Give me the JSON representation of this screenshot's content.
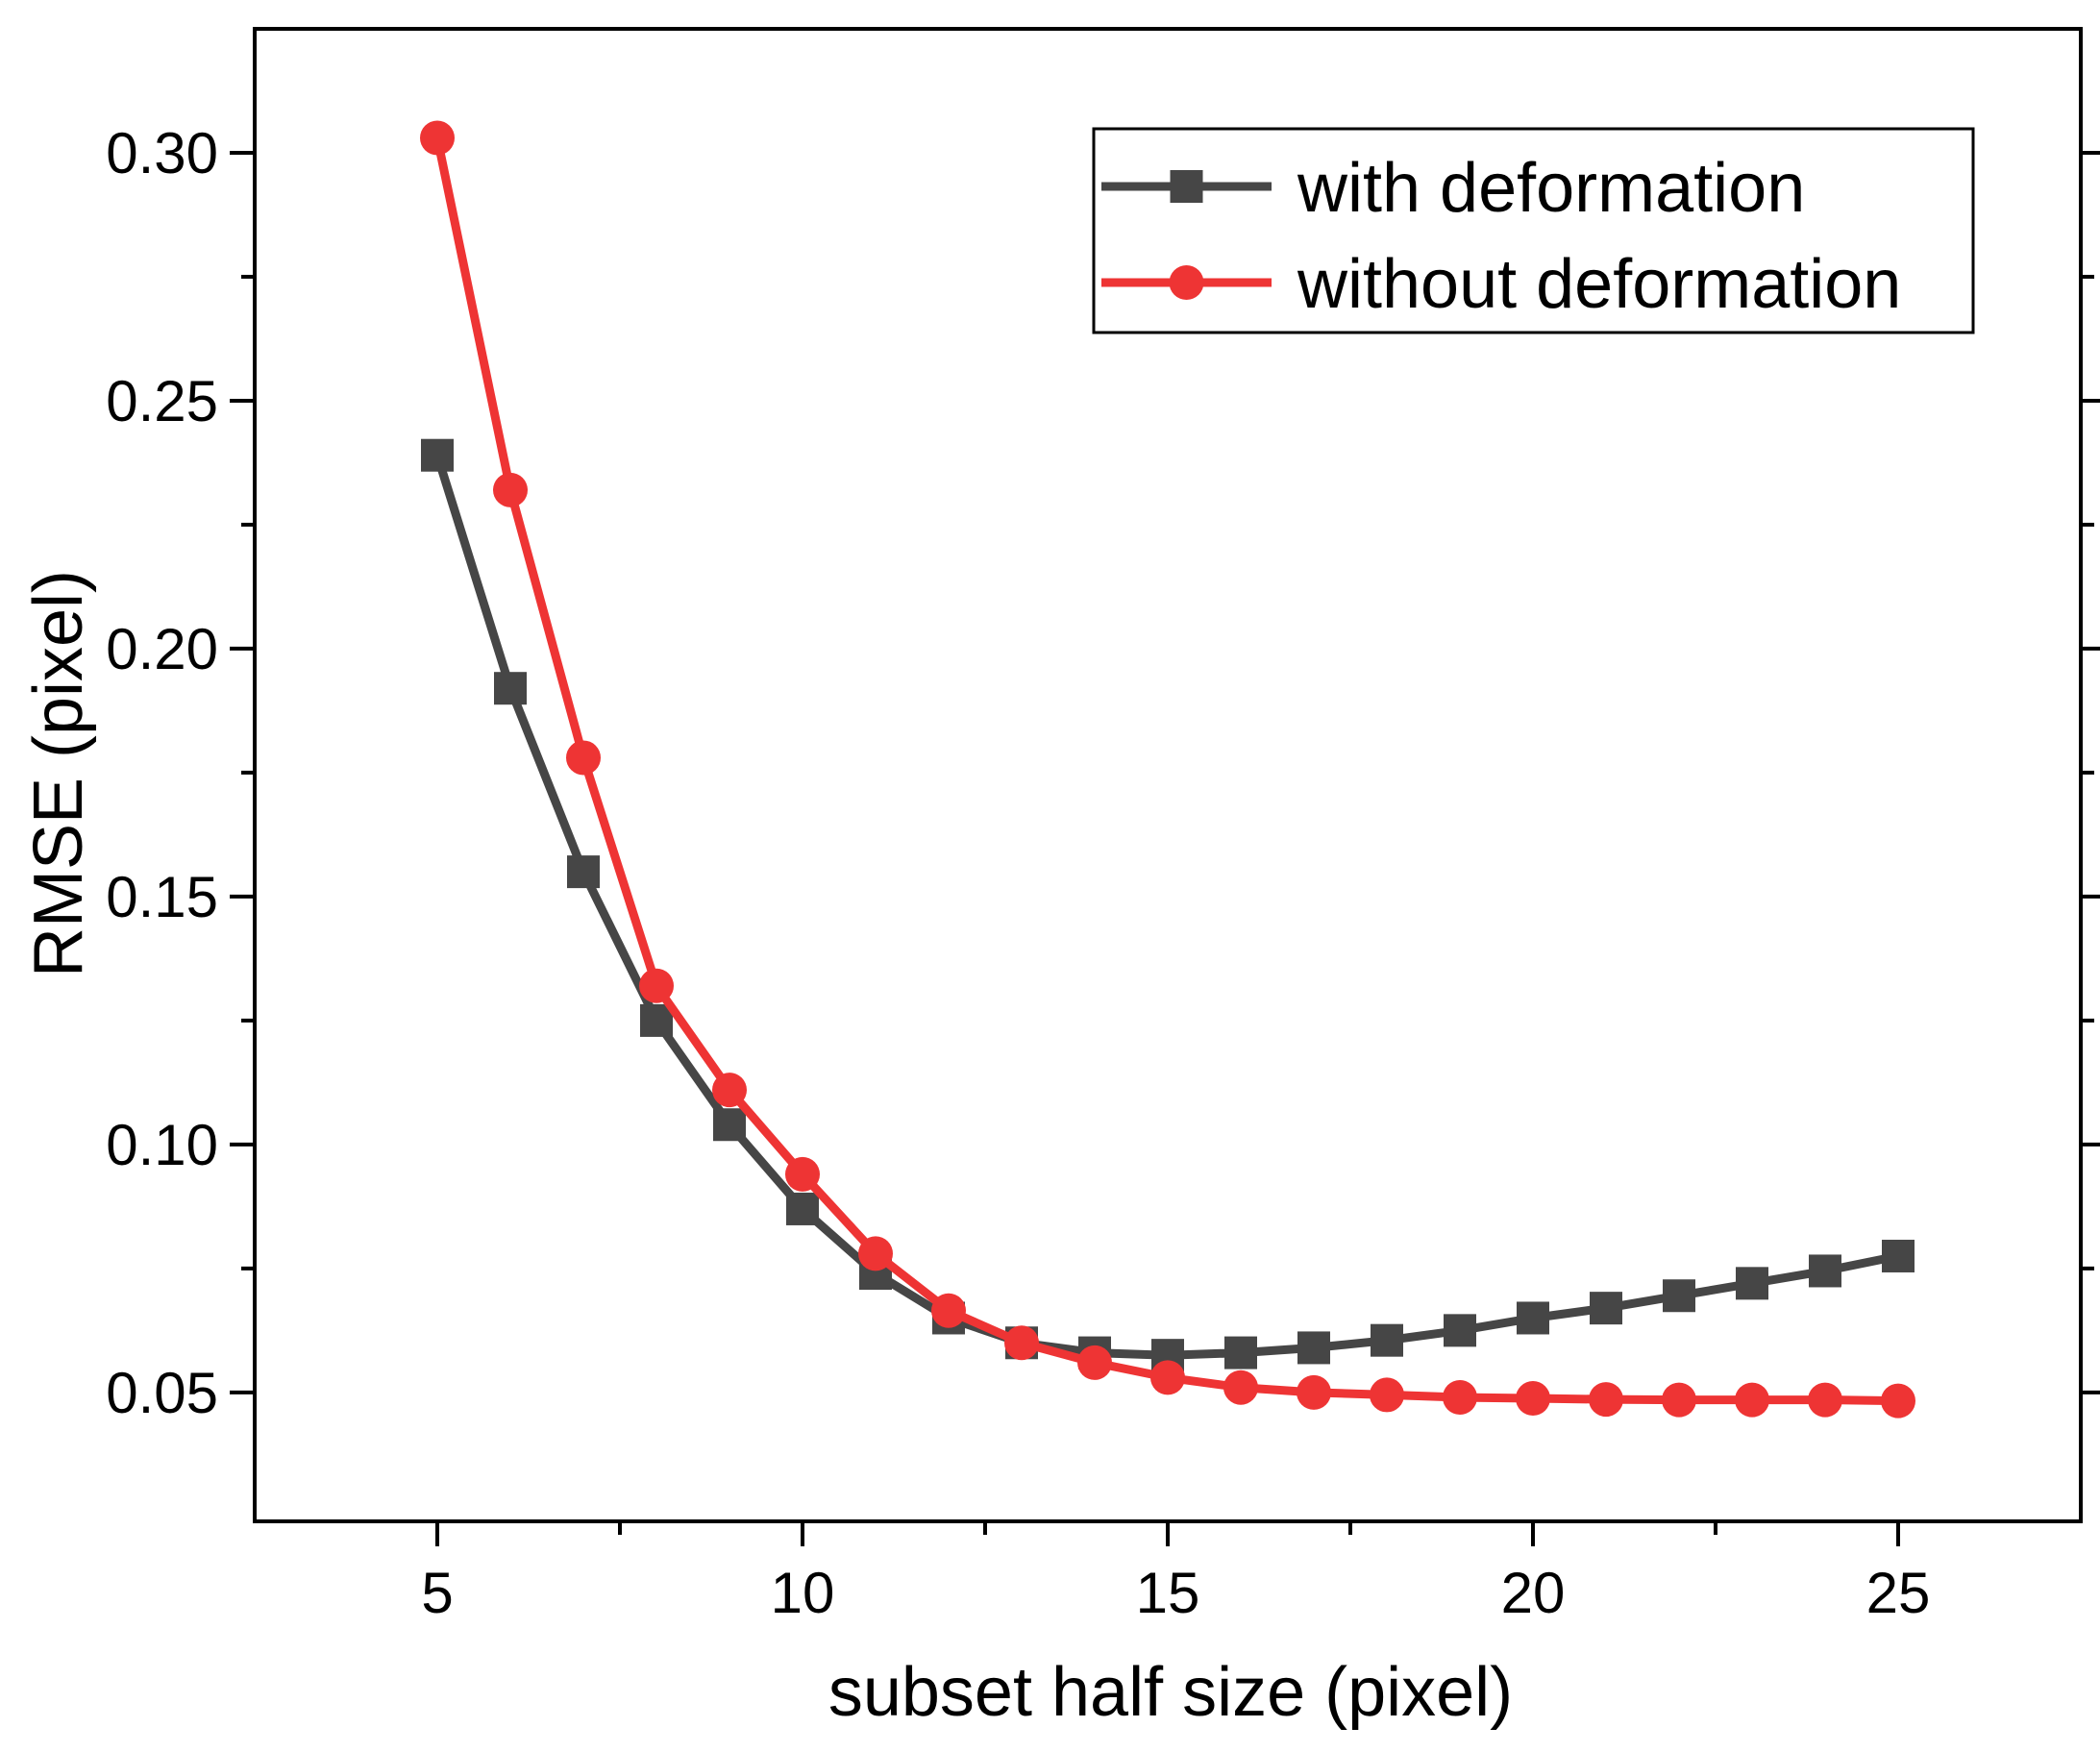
{
  "chart_data": {
    "type": "line",
    "title": "",
    "xlabel": "subset half size (pixel)",
    "ylabel": "RMSE (pixel)",
    "xlim": [
      2.5,
      27.5
    ],
    "ylim": [
      0.024,
      0.325
    ],
    "xticks": [
      5,
      10,
      15,
      20,
      25
    ],
    "xtick_labels": [
      "5",
      "10",
      "15",
      "20",
      "25"
    ],
    "yticks": [
      0.05,
      0.1,
      0.15,
      0.2,
      0.25,
      0.3
    ],
    "ytick_labels": [
      "0.05",
      "0.10",
      "0.15",
      "0.20",
      "0.25",
      "0.30"
    ],
    "grid": false,
    "legend_position": "top-right",
    "x": [
      5,
      6,
      7,
      8,
      9,
      10,
      11,
      12,
      13,
      14,
      15,
      16,
      17,
      18,
      19,
      20,
      21,
      22,
      23,
      24,
      25
    ],
    "series": [
      {
        "name": "with deformation",
        "marker": "square",
        "color": "#464646",
        "values": [
          0.239,
          0.192,
          0.155,
          0.125,
          0.104,
          0.087,
          0.074,
          0.065,
          0.06,
          0.058,
          0.0575,
          0.058,
          0.059,
          0.0605,
          0.0625,
          0.065,
          0.067,
          0.0695,
          0.072,
          0.0745,
          0.0775
        ]
      },
      {
        "name": "without deformation",
        "marker": "circle",
        "color": "#ee3434",
        "values": [
          0.303,
          0.232,
          0.178,
          0.132,
          0.111,
          0.094,
          0.078,
          0.0665,
          0.06,
          0.056,
          0.053,
          0.051,
          0.05,
          0.0495,
          0.049,
          0.0488,
          0.0486,
          0.0485,
          0.0485,
          0.0485,
          0.0483
        ]
      }
    ]
  }
}
